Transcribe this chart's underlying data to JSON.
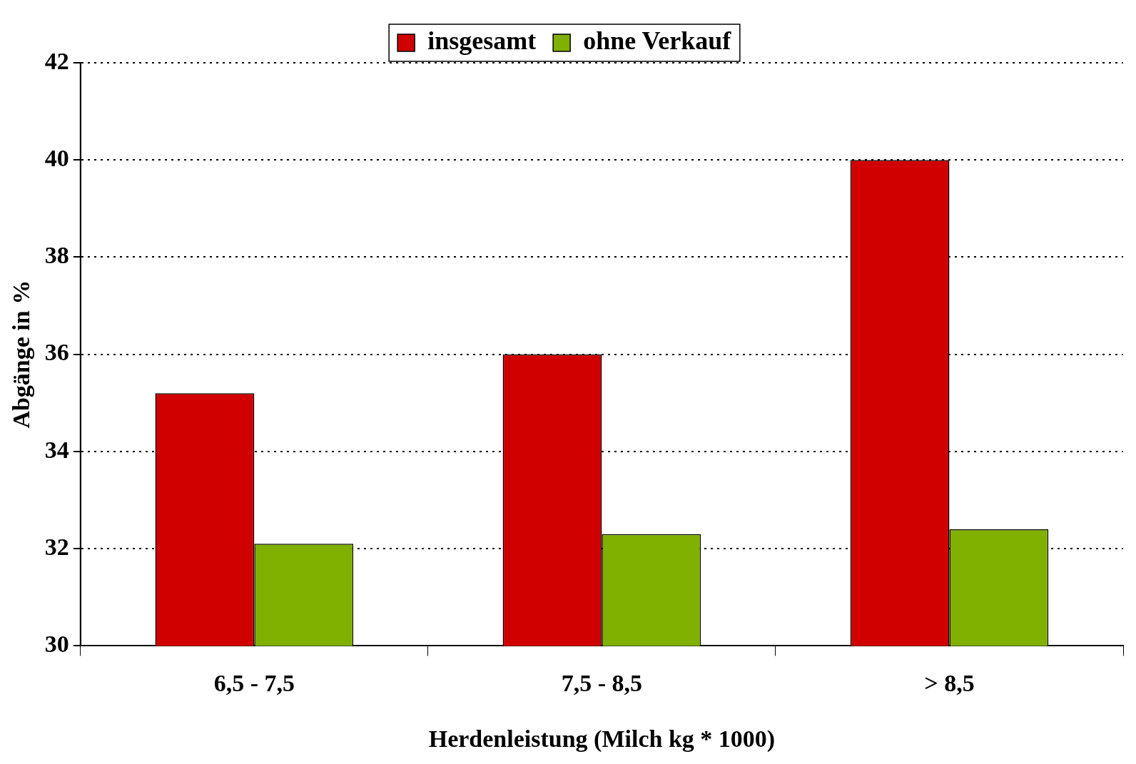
{
  "chart_data": {
    "type": "bar",
    "xlabel": "Herdenleistung (Milch kg * 1000)",
    "ylabel": "Abgänge in %",
    "categories": [
      "6,5 - 7,5",
      "7,5 - 8,5",
      "> 8,5"
    ],
    "series": [
      {
        "name": "insgesamt",
        "color": "#d00000",
        "values": [
          35.2,
          36.0,
          40.0
        ]
      },
      {
        "name": "ohne Verkauf",
        "color": "#80b000",
        "values": [
          32.1,
          32.3,
          32.4
        ]
      }
    ],
    "ylim": [
      30,
      42
    ],
    "yticks": [
      30,
      32,
      34,
      36,
      38,
      40,
      42
    ],
    "grid": "y",
    "legend": "top"
  }
}
